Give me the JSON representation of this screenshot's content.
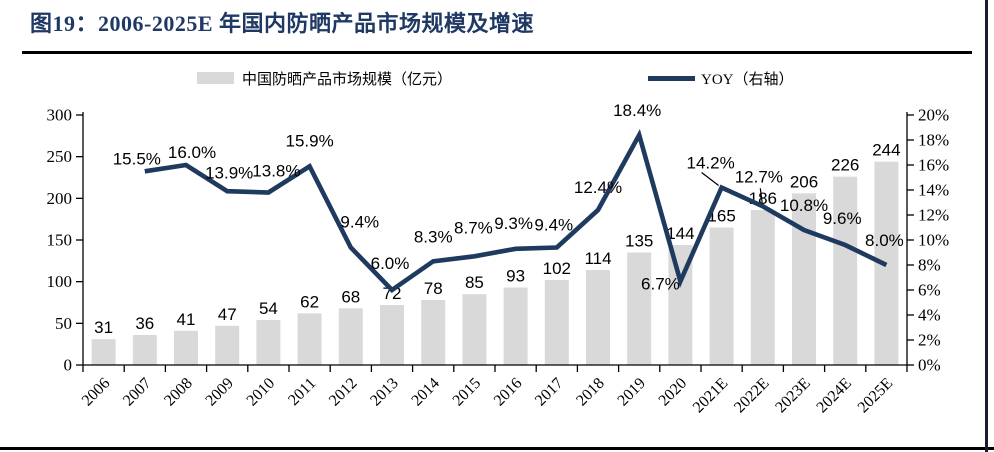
{
  "figure": {
    "title": "图19：2006-2025E 年国内防晒产品市场规模及增速"
  },
  "legend": {
    "items": [
      {
        "label": "中国防晒产品市场规模（亿元）",
        "marker": "bar-swatch",
        "color": "#D9D9D9"
      },
      {
        "label": "YOY（右轴）",
        "marker": "line-swatch",
        "color": "#1F3A5F"
      }
    ]
  },
  "chart_data": {
    "type": "bar+line combo",
    "title": "2006-2025E 年国内防晒产品市场规模及增速",
    "categories": [
      "2006",
      "2007",
      "2008",
      "2009",
      "2010",
      "2011",
      "2012",
      "2013",
      "2014",
      "2015",
      "2016",
      "2017",
      "2018",
      "2019",
      "2020",
      "2021E",
      "2022E",
      "2023E",
      "2024E",
      "2025E"
    ],
    "series": [
      {
        "name": "中国防晒产品市场规模（亿元）",
        "type": "bar",
        "axis": "left",
        "color": "#D9D9D9",
        "values": [
          31,
          36,
          41,
          47,
          54,
          62,
          68,
          72,
          78,
          85,
          93,
          102,
          114,
          135,
          144,
          165,
          186,
          206,
          226,
          244
        ]
      },
      {
        "name": "YOY（右轴）",
        "type": "line",
        "axis": "right",
        "color": "#1F3A5F",
        "values": [
          null,
          15.5,
          16.0,
          13.9,
          13.8,
          15.9,
          9.4,
          6.0,
          8.3,
          8.7,
          9.3,
          9.4,
          12.4,
          18.4,
          6.7,
          14.2,
          12.7,
          10.8,
          9.6,
          8.0
        ],
        "labels": [
          "",
          "15.5%",
          "16.0%",
          "13.9%",
          "13.8%",
          "15.9%",
          "9.4%",
          "6.0%",
          "8.3%",
          "8.7%",
          "9.3%",
          "9.4%",
          "12.4%",
          "18.4%",
          "6.7%",
          "14.2%",
          "12.7%",
          "10.8%",
          "9.6%",
          "8.0%"
        ]
      }
    ],
    "left_axis": {
      "min": 0,
      "max": 300,
      "step": 50,
      "ticks": [
        "0",
        "50",
        "100",
        "150",
        "200",
        "250",
        "300"
      ]
    },
    "right_axis": {
      "min": 0,
      "max": 20,
      "step": 2,
      "ticks": [
        "0%",
        "2%",
        "4%",
        "6%",
        "8%",
        "10%",
        "12%",
        "14%",
        "16%",
        "18%",
        "20%"
      ]
    },
    "grid": false,
    "legend_position": "top"
  },
  "colors": {
    "title": "#1F3864",
    "line": "#1F3A5F",
    "bar": "#D9D9D9",
    "axis": "#000000",
    "label_text": "#000000",
    "separator": "#000000"
  }
}
